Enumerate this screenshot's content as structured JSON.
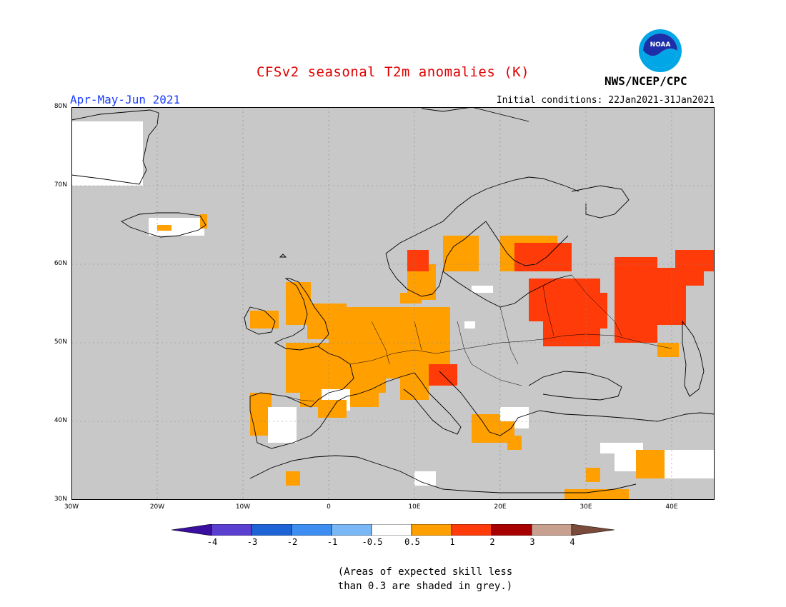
{
  "title": "CFSv2 seasonal T2m anomalies (K)",
  "period": "Apr-May-Jun 2021",
  "initial_conditions": "Initial conditions: 22Jan2021-31Jan2021",
  "agency": "NWS/NCEP/CPC",
  "logo_text": "NOAA",
  "lat_labels": [
    "80N",
    "70N",
    "60N",
    "50N",
    "40N",
    "30N"
  ],
  "lon_labels": [
    "30W",
    "20W",
    "10W",
    "0",
    "10E",
    "20E",
    "30E",
    "40E"
  ],
  "colorbar": {
    "labels": [
      "-4",
      "-3",
      "-2",
      "-1",
      "-0.5",
      "0.5",
      "1",
      "2",
      "3",
      "4"
    ],
    "colors": [
      "#3a0fa0",
      "#5a3fd0",
      "#1e64d6",
      "#3d8ef0",
      "#7ab8f5",
      "#ffffff",
      "#ff9f00",
      "#ff3b0a",
      "#a80000",
      "#c8a090",
      "#7a4a3a"
    ]
  },
  "note_line1": "(Areas of expected skill less",
  "note_line2": "than 0.3 are shaded in grey.)",
  "colors": {
    "ocean_grey": "#c8c8c8",
    "no_anom": "#ffffff",
    "warm1": "#ff9f00",
    "warm2": "#ff3b0a"
  }
}
